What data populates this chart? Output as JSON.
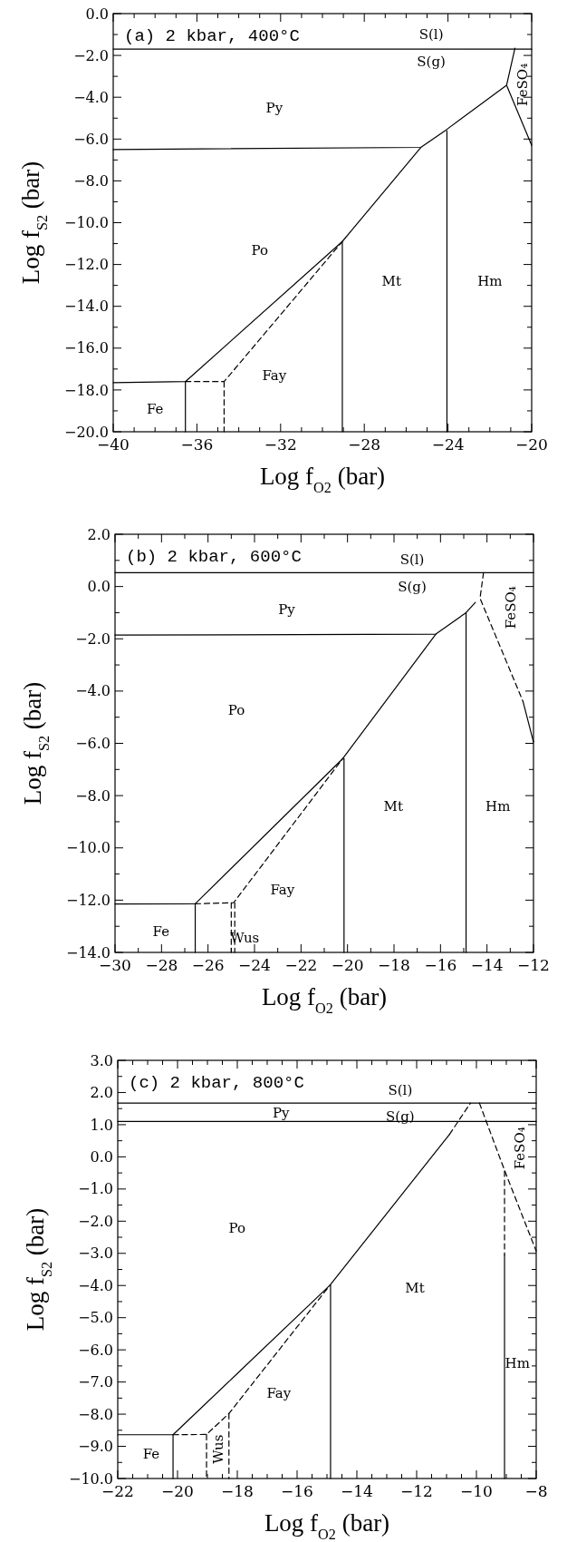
{
  "chart_data": [
    {
      "type": "line",
      "title": "(a) 2 kbar, 400°C",
      "xlabel": "Log f$_{O2}$ (bar)",
      "ylabel": "Log f$_{S2}$ (bar)",
      "marker": "none",
      "xlim": [
        -40,
        -20
      ],
      "ylim": [
        -20,
        0
      ],
      "xticks": [
        {
          "value": -40,
          "label": "−40"
        },
        {
          "value": -39,
          "label": null
        },
        {
          "value": -38,
          "label": null
        },
        {
          "value": -37,
          "label": null
        },
        {
          "value": -36,
          "label": "−36"
        },
        {
          "value": -35,
          "label": null
        },
        {
          "value": -34,
          "label": null
        },
        {
          "value": -33,
          "label": null
        },
        {
          "value": -32,
          "label": "−32"
        },
        {
          "value": -31,
          "label": null
        },
        {
          "value": -30,
          "label": null
        },
        {
          "value": -29,
          "label": null
        },
        {
          "value": -28,
          "label": "−28"
        },
        {
          "value": -27,
          "label": null
        },
        {
          "value": -26,
          "label": null
        },
        {
          "value": -25,
          "label": null
        },
        {
          "value": -24,
          "label": "−24"
        },
        {
          "value": -23,
          "label": null
        },
        {
          "value": -22,
          "label": null
        },
        {
          "value": -21,
          "label": null
        },
        {
          "value": -20,
          "label": "−20"
        }
      ],
      "yticks": [
        {
          "value": 0,
          "label": "0.0"
        },
        {
          "value": -1,
          "label": null
        },
        {
          "value": -2,
          "label": "−2.0"
        },
        {
          "value": -3,
          "label": null
        },
        {
          "value": -4,
          "label": "−4.0"
        },
        {
          "value": -5,
          "label": null
        },
        {
          "value": -6,
          "label": "−6.0"
        },
        {
          "value": -7,
          "label": null
        },
        {
          "value": -8,
          "label": "−8.0"
        },
        {
          "value": -9,
          "label": null
        },
        {
          "value": -10,
          "label": "−10.0"
        },
        {
          "value": -11,
          "label": null
        },
        {
          "value": -12,
          "label": "−12.0"
        },
        {
          "value": -13,
          "label": null
        },
        {
          "value": -14,
          "label": "−14.0"
        },
        {
          "value": -15,
          "label": null
        },
        {
          "value": -16,
          "label": "−16.0"
        },
        {
          "value": -17,
          "label": null
        },
        {
          "value": -18,
          "label": "−18.0"
        },
        {
          "value": -19,
          "label": null
        },
        {
          "value": -20,
          "label": "−20.0"
        }
      ],
      "series": [
        {
          "color": "#000000",
          "line_style": "solid",
          "x": [
            -40,
            -20
          ],
          "values": [
            -1.7,
            -1.7
          ]
        },
        {
          "color": "#000000",
          "line_style": "solid",
          "x": [
            -40,
            -25.3,
            -24.1,
            -21.2,
            -20.8
          ],
          "values": [
            -6.5,
            -6.4,
            -5.57,
            -3.43,
            -1.65
          ]
        },
        {
          "color": "#000000",
          "line_style": "solid",
          "x": [
            -21.2,
            -20
          ],
          "values": [
            -3.43,
            -6.3
          ]
        },
        {
          "color": "#000000",
          "line_style": "solid",
          "x": [
            -40,
            -36.55,
            -29.05,
            -25.3
          ],
          "values": [
            -17.65,
            -17.6,
            -10.9,
            -6.4
          ]
        },
        {
          "color": "#000000",
          "line_style": "solid",
          "x": [
            -36.55,
            -36.55
          ],
          "values": [
            -17.6,
            -20
          ]
        },
        {
          "color": "#000000",
          "line_style": "solid",
          "x": [
            -29.05,
            -29.05
          ],
          "values": [
            -10.9,
            -20
          ]
        },
        {
          "color": "#000000",
          "line_style": "solid",
          "x": [
            -24.05,
            -24.05
          ],
          "values": [
            -5.6,
            -20
          ]
        },
        {
          "color": "#000000",
          "line_style": "dashed",
          "x": [
            -36.55,
            -34.7,
            -29.05
          ],
          "values": [
            -17.6,
            -17.6,
            -10.9
          ]
        },
        {
          "color": "#000000",
          "line_style": "dashed",
          "x": [
            -34.7,
            -34.7
          ],
          "values": [
            -17.6,
            -20
          ]
        }
      ],
      "annotations": [
        "S(l)",
        "S(g)",
        "Py",
        "Po",
        "Mt",
        "Hm",
        "Fay",
        "Fe",
        "FeSO₄"
      ]
    },
    {
      "type": "line",
      "title": "(b) 2 kbar, 600°C",
      "xlabel": "Log f$_{O2}$ (bar)",
      "ylabel": "Log f$_{S2}$ (bar)",
      "marker": "none",
      "xlim": [
        -30,
        -12
      ],
      "ylim": [
        -14,
        2
      ],
      "xticks": [
        {
          "value": -30,
          "label": "−30"
        },
        {
          "value": -29,
          "label": null
        },
        {
          "value": -28,
          "label": "−28"
        },
        {
          "value": -27,
          "label": null
        },
        {
          "value": -26,
          "label": "−26"
        },
        {
          "value": -25,
          "label": null
        },
        {
          "value": -24,
          "label": "−24"
        },
        {
          "value": -23,
          "label": null
        },
        {
          "value": -22,
          "label": "−22"
        },
        {
          "value": -21,
          "label": null
        },
        {
          "value": -20,
          "label": "−20"
        },
        {
          "value": -19,
          "label": null
        },
        {
          "value": -18,
          "label": "−18"
        },
        {
          "value": -17,
          "label": null
        },
        {
          "value": -16,
          "label": "−16"
        },
        {
          "value": -15,
          "label": null
        },
        {
          "value": -14,
          "label": "−14"
        },
        {
          "value": -13,
          "label": null
        },
        {
          "value": -12,
          "label": "−12"
        }
      ],
      "yticks": [
        {
          "value": 2,
          "label": "2.0"
        },
        {
          "value": 1,
          "label": null
        },
        {
          "value": 0,
          "label": "0.0"
        },
        {
          "value": -1,
          "label": null
        },
        {
          "value": -2,
          "label": "−2.0"
        },
        {
          "value": -3,
          "label": null
        },
        {
          "value": -4,
          "label": "−4.0"
        },
        {
          "value": -5,
          "label": null
        },
        {
          "value": -6,
          "label": "−6.0"
        },
        {
          "value": -7,
          "label": null
        },
        {
          "value": -8,
          "label": "−8.0"
        },
        {
          "value": -9,
          "label": null
        },
        {
          "value": -10,
          "label": "−10.0"
        },
        {
          "value": -11,
          "label": null
        },
        {
          "value": -12,
          "label": "−12.0"
        },
        {
          "value": -13,
          "label": null
        },
        {
          "value": -14,
          "label": "−14.0"
        }
      ],
      "series": [
        {
          "color": "#000000",
          "line_style": "solid",
          "x": [
            -30,
            -12
          ],
          "values": [
            0.53,
            0.53
          ]
        },
        {
          "color": "#000000",
          "line_style": "solid",
          "x": [
            -30,
            -16.2,
            -14.9,
            -14.5
          ],
          "values": [
            -1.86,
            -1.82,
            -1.0,
            -0.61
          ]
        },
        {
          "color": "#000000",
          "line_style": "dashed",
          "x": [
            -14.15,
            -14.3,
            -12.45
          ],
          "values": [
            0.53,
            -0.45,
            -4.4
          ]
        },
        {
          "color": "#000000",
          "line_style": "solid",
          "x": [
            -12.45,
            -12
          ],
          "values": [
            -4.4,
            -5.95
          ]
        },
        {
          "color": "#000000",
          "line_style": "solid",
          "x": [
            -30,
            -26.55,
            -20.2,
            -16.2
          ],
          "values": [
            -12.15,
            -12.14,
            -6.58,
            -1.82
          ]
        },
        {
          "color": "#000000",
          "line_style": "solid",
          "x": [
            -26.55,
            -26.55
          ],
          "values": [
            -12.14,
            -14
          ]
        },
        {
          "color": "#000000",
          "line_style": "solid",
          "x": [
            -20.15,
            -20.15
          ],
          "values": [
            -6.58,
            -14
          ]
        },
        {
          "color": "#000000",
          "line_style": "solid",
          "x": [
            -14.9,
            -14.9
          ],
          "values": [
            -1.0,
            -14
          ]
        },
        {
          "color": "#000000",
          "line_style": "dashed",
          "x": [
            -26.55,
            -24.9,
            -20.2
          ],
          "values": [
            -12.14,
            -12.1,
            -6.58
          ]
        },
        {
          "color": "#000000",
          "line_style": "dashed",
          "x": [
            -25.0,
            -25.0
          ],
          "values": [
            -12.1,
            -14
          ]
        },
        {
          "color": "#000000",
          "line_style": "dashed",
          "x": [
            -24.85,
            -24.85
          ],
          "values": [
            -12.1,
            -14
          ]
        }
      ],
      "annotations": [
        "S(l)",
        "S(g)",
        "Py",
        "Po",
        "Mt",
        "Hm",
        "Fay",
        "Fe",
        "Wus",
        "FeSO₄"
      ]
    },
    {
      "type": "line",
      "title": "(c) 2 kbar, 800°C",
      "xlabel": "Log f$_{O2}$ (bar)",
      "ylabel": "Log f$_{S2}$ (bar)",
      "marker": "none",
      "xlim": [
        -22,
        -8
      ],
      "ylim": [
        -10,
        3
      ],
      "xticks": [
        {
          "value": -22,
          "label": "−22"
        },
        {
          "value": -21.5,
          "label": null
        },
        {
          "value": -21,
          "label": null
        },
        {
          "value": -20.5,
          "label": null
        },
        {
          "value": -20,
          "label": "−20"
        },
        {
          "value": -19.5,
          "label": null
        },
        {
          "value": -19,
          "label": null
        },
        {
          "value": -18.5,
          "label": null
        },
        {
          "value": -18,
          "label": "−18"
        },
        {
          "value": -17.5,
          "label": null
        },
        {
          "value": -17,
          "label": null
        },
        {
          "value": -16.5,
          "label": null
        },
        {
          "value": -16,
          "label": "−16"
        },
        {
          "value": -15.5,
          "label": null
        },
        {
          "value": -15,
          "label": null
        },
        {
          "value": -14.5,
          "label": null
        },
        {
          "value": -14,
          "label": "−14"
        },
        {
          "value": -13.5,
          "label": null
        },
        {
          "value": -13,
          "label": null
        },
        {
          "value": -12.5,
          "label": null
        },
        {
          "value": -12,
          "label": "−12"
        },
        {
          "value": -11.5,
          "label": null
        },
        {
          "value": -11,
          "label": null
        },
        {
          "value": -10.5,
          "label": null
        },
        {
          "value": -10,
          "label": "−10"
        },
        {
          "value": -9.5,
          "label": null
        },
        {
          "value": -9,
          "label": null
        },
        {
          "value": -8.5,
          "label": null
        },
        {
          "value": -8,
          "label": "−8"
        }
      ],
      "yticks": [
        {
          "value": 3,
          "label": "3.0"
        },
        {
          "value": 2.5,
          "label": null
        },
        {
          "value": 2,
          "label": "2.0"
        },
        {
          "value": 1.5,
          "label": null
        },
        {
          "value": 1,
          "label": "1.0"
        },
        {
          "value": 0.5,
          "label": null
        },
        {
          "value": 0,
          "label": "0.0"
        },
        {
          "value": -0.5,
          "label": null
        },
        {
          "value": -1,
          "label": "−1.0"
        },
        {
          "value": -1.5,
          "label": null
        },
        {
          "value": -2,
          "label": "−2.0"
        },
        {
          "value": -2.5,
          "label": null
        },
        {
          "value": -3,
          "label": "−3.0"
        },
        {
          "value": -3.5,
          "label": null
        },
        {
          "value": -4,
          "label": "−4.0"
        },
        {
          "value": -4.5,
          "label": null
        },
        {
          "value": -5,
          "label": "−5.0"
        },
        {
          "value": -5.5,
          "label": null
        },
        {
          "value": -6,
          "label": "−6.0"
        },
        {
          "value": -6.5,
          "label": null
        },
        {
          "value": -7,
          "label": "−7.0"
        },
        {
          "value": -7.5,
          "label": null
        },
        {
          "value": -8,
          "label": "−8.0"
        },
        {
          "value": -8.5,
          "label": null
        },
        {
          "value": -9,
          "label": "−9.0"
        },
        {
          "value": -9.5,
          "label": null
        },
        {
          "value": -10,
          "label": "−10.0"
        }
      ],
      "series": [
        {
          "color": "#000000",
          "line_style": "solid",
          "x": [
            -22,
            -8
          ],
          "values": [
            1.67,
            1.67
          ]
        },
        {
          "color": "#000000",
          "line_style": "solid",
          "x": [
            -22,
            -8
          ],
          "values": [
            1.1,
            1.1
          ]
        },
        {
          "color": "#000000",
          "line_style": "solid",
          "x": [
            -22,
            -20.15,
            -14.9,
            -10.9
          ],
          "values": [
            -8.64,
            -8.64,
            -3.99,
            0.7
          ]
        },
        {
          "color": "#000000",
          "line_style": "dashed",
          "x": [
            -10.9,
            -10.2
          ],
          "values": [
            0.7,
            1.67
          ]
        },
        {
          "color": "#000000",
          "line_style": "dashed",
          "x": [
            -9.9,
            -9.05,
            -8
          ],
          "values": [
            1.67,
            -0.44,
            -2.93
          ]
        },
        {
          "color": "#000000",
          "line_style": "dashed",
          "x": [
            -9.06,
            -9.06
          ],
          "values": [
            -0.44,
            -3.05
          ]
        },
        {
          "color": "#000000",
          "line_style": "solid",
          "x": [
            -9.06,
            -9.06
          ],
          "values": [
            -3.05,
            -10
          ]
        },
        {
          "color": "#000000",
          "line_style": "solid",
          "x": [
            -20.15,
            -20.15
          ],
          "values": [
            -8.64,
            -10
          ]
        },
        {
          "color": "#000000",
          "line_style": "solid",
          "x": [
            -14.88,
            -14.88
          ],
          "values": [
            -3.99,
            -10
          ]
        },
        {
          "color": "#000000",
          "line_style": "dashed",
          "x": [
            -20.15,
            -19.03,
            -18.28,
            -14.9
          ],
          "values": [
            -8.64,
            -8.63,
            -7.98,
            -3.99
          ]
        },
        {
          "color": "#000000",
          "line_style": "dashed",
          "x": [
            -19.03,
            -19.03
          ],
          "values": [
            -8.63,
            -10
          ]
        },
        {
          "color": "#000000",
          "line_style": "dashed",
          "x": [
            -18.28,
            -18.28
          ],
          "values": [
            -7.98,
            -10
          ]
        }
      ],
      "annotations": [
        "S(l)",
        "S(g)",
        "Py",
        "Po",
        "Mt",
        "Hm",
        "Fay",
        "Fe",
        "Wus",
        "FeSO₄"
      ]
    }
  ]
}
